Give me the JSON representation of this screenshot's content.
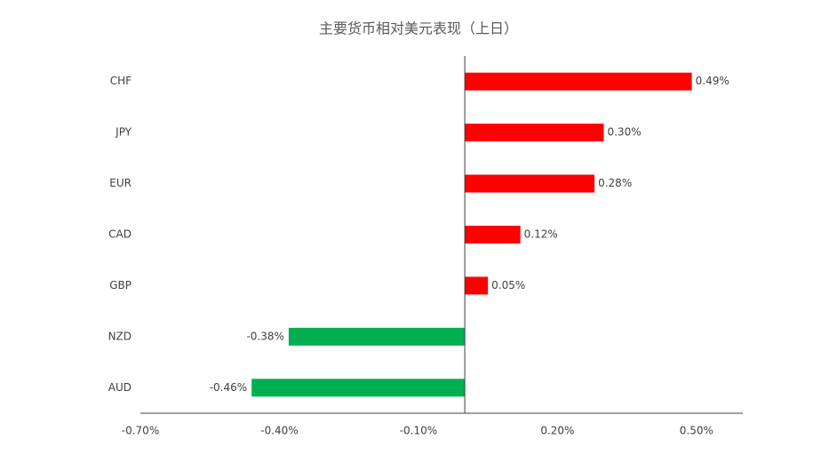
{
  "chart_data": {
    "type": "hbar",
    "title": "主要货币相对美元表现（上日）",
    "categories": [
      "CHF",
      "JPY",
      "EUR",
      "CAD",
      "GBP",
      "NZD",
      "AUD"
    ],
    "values": [
      0.49,
      0.3,
      0.28,
      0.12,
      0.05,
      -0.38,
      -0.46
    ],
    "value_labels": [
      "0.49%",
      "0.30%",
      "0.28%",
      "0.12%",
      "0.05%",
      "-0.38%",
      "-0.46%"
    ],
    "positive_color": "#ff0000",
    "negative_color": "#00b050",
    "xlim": [
      -0.7,
      0.6
    ],
    "xticks": [
      {
        "value": -0.7,
        "label": "-0.70%"
      },
      {
        "value": -0.4,
        "label": "-0.40%"
      },
      {
        "value": -0.1,
        "label": "-0.10%"
      },
      {
        "value": 0.2,
        "label": "0.20%"
      },
      {
        "value": 0.5,
        "label": "0.50%"
      }
    ],
    "grid": false
  }
}
